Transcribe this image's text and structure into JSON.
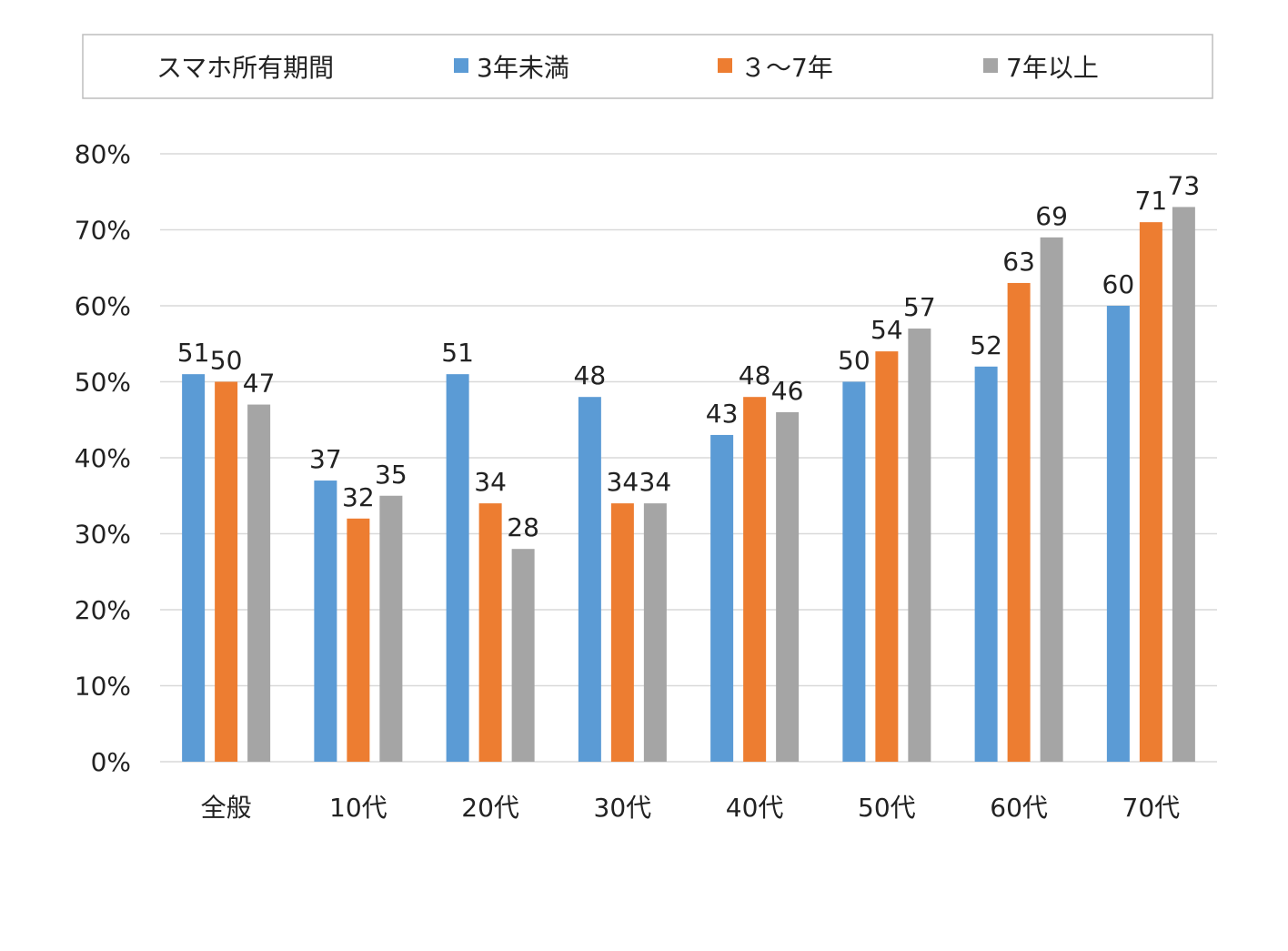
{
  "chart_data": {
    "type": "bar",
    "legend_title": "スマホ所有期間",
    "legend_position": "top",
    "categories": [
      "全般",
      "10代",
      "20代",
      "30代",
      "40代",
      "50代",
      "60代",
      "70代"
    ],
    "series": [
      {
        "name": "3年未満",
        "color": "#5b9bd5",
        "values": [
          51,
          37,
          51,
          48,
          43,
          50,
          52,
          60
        ]
      },
      {
        "name": "３～7年",
        "color": "#ed7d31",
        "values": [
          50,
          32,
          34,
          34,
          48,
          54,
          63,
          71
        ]
      },
      {
        "name": "7年以上",
        "color": "#a5a5a5",
        "values": [
          47,
          35,
          28,
          34,
          46,
          57,
          69,
          73
        ]
      }
    ],
    "ylim": [
      0,
      80
    ],
    "yticks": [
      "0%",
      "10%",
      "20%",
      "30%",
      "40%",
      "50%",
      "60%",
      "70%",
      "80%"
    ],
    "grid": true
  }
}
